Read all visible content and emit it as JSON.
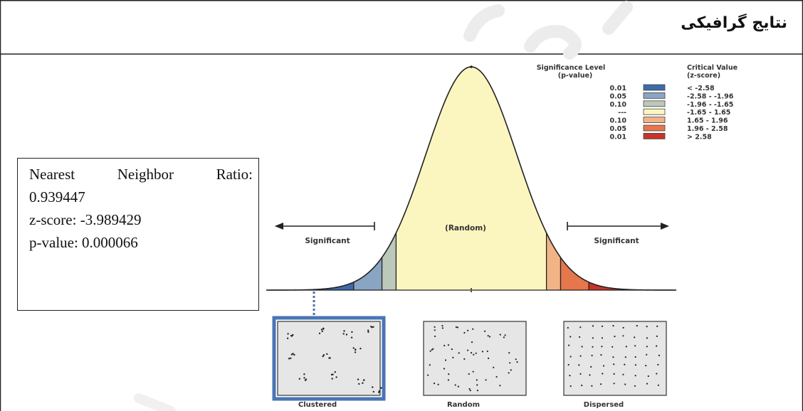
{
  "header": {
    "title": "نتایج گرافیکی"
  },
  "stats": {
    "ratio_label": "Nearest Neighbor Ratio:",
    "ratio_value": "0.939447",
    "zscore": "z-score: -3.989429",
    "pvalue": "p-value: 0.000066"
  },
  "chart_data": {
    "type": "area",
    "title": "",
    "xlabel": "",
    "ylabel": "",
    "curve": "standard normal distribution",
    "region_labels": {
      "left": "Significant",
      "center": "(Random)",
      "right": "Significant"
    },
    "legend": {
      "placement": "top-right",
      "sig_header_1": "Significance Level",
      "sig_header_2": "(p-value)",
      "crit_header_1": "Critical Value",
      "crit_header_2": "(z-score)",
      "rows": [
        {
          "p": "0.01",
          "z": "< -2.58",
          "color": "#3f6aa8"
        },
        {
          "p": "0.05",
          "z": "-2.58 - -1.96",
          "color": "#8aa4c4"
        },
        {
          "p": "0.10",
          "z": "-1.96 - -1.65",
          "color": "#bcc8ba"
        },
        {
          "p": "---",
          "z": "-1.65 - 1.65",
          "color": "#fbf6bf"
        },
        {
          "p": "0.10",
          "z": "1.65 - 1.96",
          "color": "#f2b386"
        },
        {
          "p": "0.05",
          "z": "1.96 - 2.58",
          "color": "#e6764b"
        },
        {
          "p": "0.01",
          "z": "> 2.58",
          "color": "#c8332b"
        }
      ]
    },
    "bands": [
      {
        "from": -4.0,
        "to": -2.58,
        "color": "#3f6aa8"
      },
      {
        "from": -2.58,
        "to": -1.96,
        "color": "#8aa4c4"
      },
      {
        "from": -1.96,
        "to": -1.65,
        "color": "#bcc8ba"
      },
      {
        "from": -1.65,
        "to": 1.65,
        "color": "#fbf6bf"
      },
      {
        "from": 1.65,
        "to": 1.96,
        "color": "#f2b386"
      },
      {
        "from": 1.96,
        "to": 2.58,
        "color": "#e6764b"
      },
      {
        "from": 2.58,
        "to": 4.0,
        "color": "#c8332b"
      }
    ],
    "highlighted_pattern": "Clustered",
    "patterns": [
      "Clustered",
      "Random",
      "Dispersed"
    ]
  }
}
